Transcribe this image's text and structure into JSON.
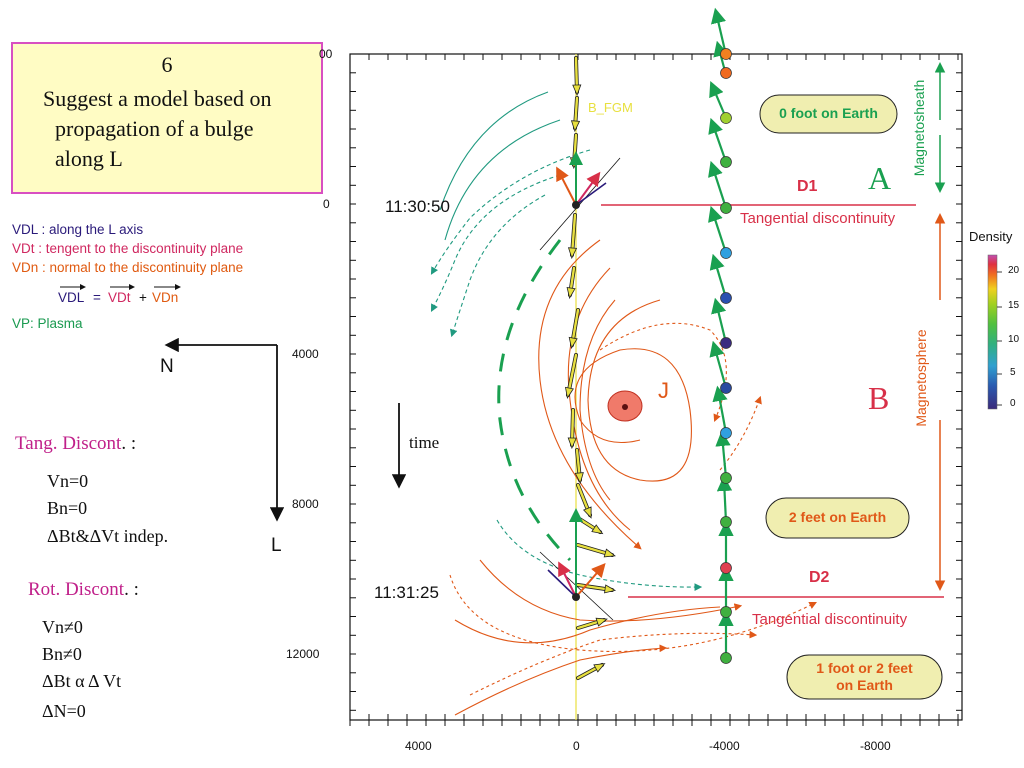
{
  "title_box": {
    "number": "6",
    "line1": "Suggest a model based on",
    "line2": "propagation of a bulge",
    "line3": "along  L"
  },
  "legend": {
    "vdl_key": "VDL",
    "vdl_desc": " : along the L axis",
    "vdt": "VDt  : tengent to the discontinuity plane",
    "vdn": "VDn : normal to the discontinuity plane",
    "eq_vdl": "VDL",
    "eq_equals": "=",
    "eq_vdt": "VDt",
    "eq_plus": "+",
    "eq_vdn": "VDn",
    "vp": "VP: Plasma"
  },
  "axes_diagram": {
    "n_label": "N",
    "l_label": "L"
  },
  "time_label": "time",
  "tang_discont": {
    "header_colored": "Tang. Discont",
    "header_suffix": ". :",
    "lines": [
      "Vn=0",
      "Bn=0",
      "ΔBt&ΔVt indep."
    ]
  },
  "rot_discont": {
    "header_colored": "Rot. Discont",
    "header_suffix": ". :",
    "lines": [
      "Vn≠0",
      "Bn≠0",
      "ΔBt α Δ  Vt",
      "ΔN=0"
    ]
  },
  "plot": {
    "y_ticks": [
      "00",
      "0",
      "4000",
      "8000",
      "12000"
    ],
    "x_ticks": [
      "4000",
      "0",
      "-4000",
      "-8000"
    ],
    "time_1": "11:30:50",
    "time_2": "11:31:25",
    "b_fgm": "B_FGM",
    "d1": "D1",
    "d2": "D2",
    "tangential_1": "Tangential discontinuity",
    "tangential_2": "Tangential discontinuity",
    "region_a": "A",
    "region_b": "B",
    "j_label": "J",
    "magnetosheath": "Magnetosheath",
    "magnetosphere": "Magnetosphere",
    "bubble_1": "0 foot on Earth",
    "bubble_2": "2 feet on Earth",
    "bubble_3_line1": "1 foot or 2 feet",
    "bubble_3_line2": "on Earth"
  },
  "colorbar": {
    "title": "Density",
    "ticks": [
      "20",
      "15",
      "10",
      "5",
      "0"
    ]
  },
  "colors": {
    "title_fill": "#fffcc4",
    "title_border": "#d84fc2",
    "vdl": "#2a1a7a",
    "vdt": "#d02860",
    "vdn": "#e05a10",
    "vp": "#1a9a50",
    "magenta": "#c0208a",
    "red_line": "#d83048",
    "orange": "#e05818",
    "green": "#1aa050",
    "arrow_yellow": "#e8e040",
    "bubble": "#f0eeb0"
  }
}
